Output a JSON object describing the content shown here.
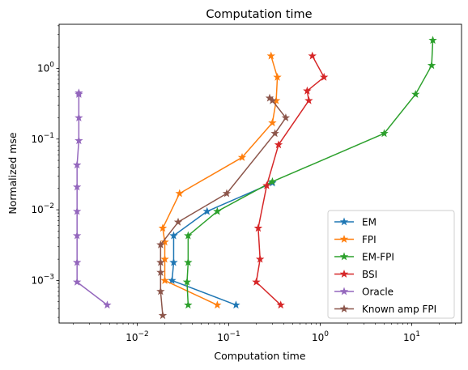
{
  "chart_data": {
    "type": "line",
    "title": "Computation time",
    "xlabel": "Computation time",
    "ylabel": "Normalized mse",
    "xscale": "log",
    "yscale": "log",
    "xlim": [
      0.0014,
      35
    ],
    "ylim": [
      0.00025,
      4.2
    ],
    "grid": false,
    "legend_position": "lower right",
    "marker": "star",
    "x_ticks": [
      {
        "value": 0.01,
        "base": "10",
        "exp": "−2"
      },
      {
        "value": 0.1,
        "base": "10",
        "exp": "−1"
      },
      {
        "value": 1,
        "base": "10",
        "exp": "0"
      },
      {
        "value": 10,
        "base": "10",
        "exp": "1"
      }
    ],
    "y_ticks": [
      {
        "value": 0.001,
        "base": "10",
        "exp": "−3"
      },
      {
        "value": 0.01,
        "base": "10",
        "exp": "−2"
      },
      {
        "value": 0.1,
        "base": "10",
        "exp": "−1"
      },
      {
        "value": 1,
        "base": "10",
        "exp": "0"
      }
    ],
    "series": [
      {
        "name": "EM",
        "color": "#1f77b4",
        "x": [
          0.12,
          0.024,
          0.025,
          0.025,
          0.058,
          0.3
        ],
        "y": [
          0.00045,
          0.001,
          0.0018,
          0.0043,
          0.0095,
          0.024
        ]
      },
      {
        "name": "FPI",
        "color": "#ff7f0e",
        "x": [
          0.075,
          0.02,
          0.02,
          0.02,
          0.019,
          0.029,
          0.14,
          0.3,
          0.33,
          0.34,
          0.29
        ],
        "y": [
          0.00045,
          0.001,
          0.002,
          0.0035,
          0.0055,
          0.017,
          0.055,
          0.17,
          0.35,
          0.75,
          1.5
        ]
      },
      {
        "name": "EM-FPI",
        "color": "#2ca02c",
        "x": [
          0.036,
          0.035,
          0.036,
          0.036,
          0.075,
          0.3,
          5,
          11,
          16.5,
          17
        ],
        "y": [
          0.00045,
          0.00095,
          0.0018,
          0.0043,
          0.0095,
          0.025,
          0.12,
          0.43,
          1.1,
          2.5
        ]
      },
      {
        "name": "BSI",
        "color": "#d62728",
        "x": [
          0.37,
          0.2,
          0.22,
          0.21,
          0.26,
          0.35,
          0.75,
          0.72,
          1.1,
          0.82
        ],
        "y": [
          0.00045,
          0.00095,
          0.002,
          0.0055,
          0.022,
          0.083,
          0.35,
          0.48,
          0.75,
          1.5
        ]
      },
      {
        "name": "Oracle",
        "color": "#9467bd",
        "x": [
          0.0047,
          0.0022,
          0.0022,
          0.0022,
          0.0022,
          0.0022,
          0.0022,
          0.0023,
          0.0023,
          0.0023,
          0.0023
        ],
        "y": [
          0.00045,
          0.00095,
          0.0018,
          0.0043,
          0.0095,
          0.021,
          0.043,
          0.095,
          0.2,
          0.43,
          0.45
        ]
      },
      {
        "name": "Known amp FPI",
        "color": "#8c564b",
        "x": [
          0.019,
          0.018,
          0.018,
          0.018,
          0.018,
          0.028,
          0.095,
          0.32,
          0.42,
          0.3,
          0.28
        ],
        "y": [
          0.00032,
          0.0007,
          0.0013,
          0.0018,
          0.0032,
          0.0067,
          0.017,
          0.12,
          0.2,
          0.35,
          0.38
        ]
      }
    ]
  }
}
